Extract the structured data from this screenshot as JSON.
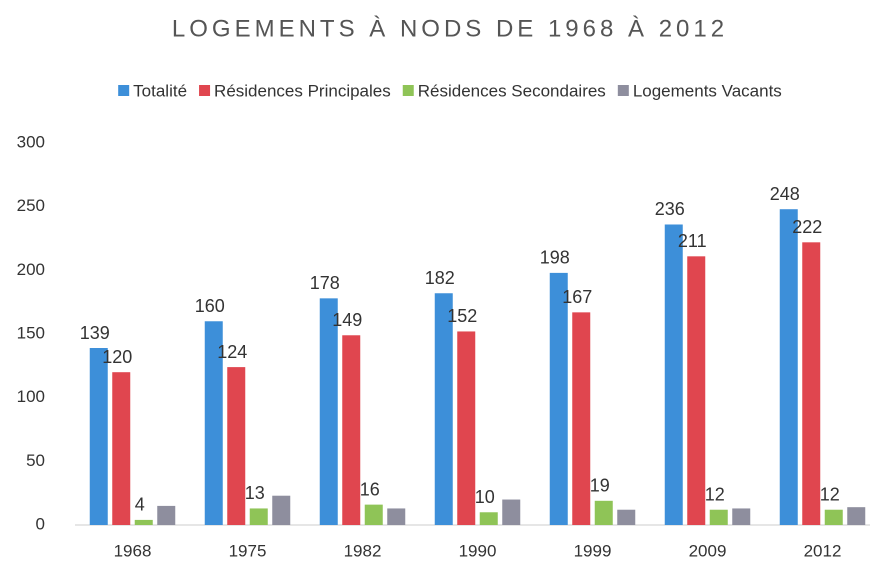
{
  "chart_data": {
    "type": "bar",
    "title": "LOGEMENTS À NODS DE 1968 À 2012",
    "categories": [
      "1968",
      "1975",
      "1982",
      "1990",
      "1999",
      "2009",
      "2012"
    ],
    "series": [
      {
        "name": "Totalité",
        "color": "#3d8fd9",
        "values": [
          139,
          160,
          178,
          182,
          198,
          236,
          248
        ],
        "show_labels": true
      },
      {
        "name": "Résidences Principales",
        "color": "#e0464f",
        "values": [
          120,
          124,
          149,
          152,
          167,
          211,
          222
        ],
        "show_labels": true
      },
      {
        "name": "Résidences Secondaires",
        "color": "#8fc457",
        "values": [
          4,
          13,
          16,
          10,
          19,
          12,
          12
        ],
        "show_labels": true
      },
      {
        "name": "Logements Vacants",
        "color": "#8e8e9e",
        "values": [
          15,
          23,
          13,
          20,
          12,
          13,
          14
        ],
        "show_labels": false
      }
    ],
    "ylim": [
      0,
      300
    ],
    "yticks": [
      0,
      50,
      100,
      150,
      200,
      250,
      300
    ],
    "grid": false,
    "legend": "top"
  }
}
